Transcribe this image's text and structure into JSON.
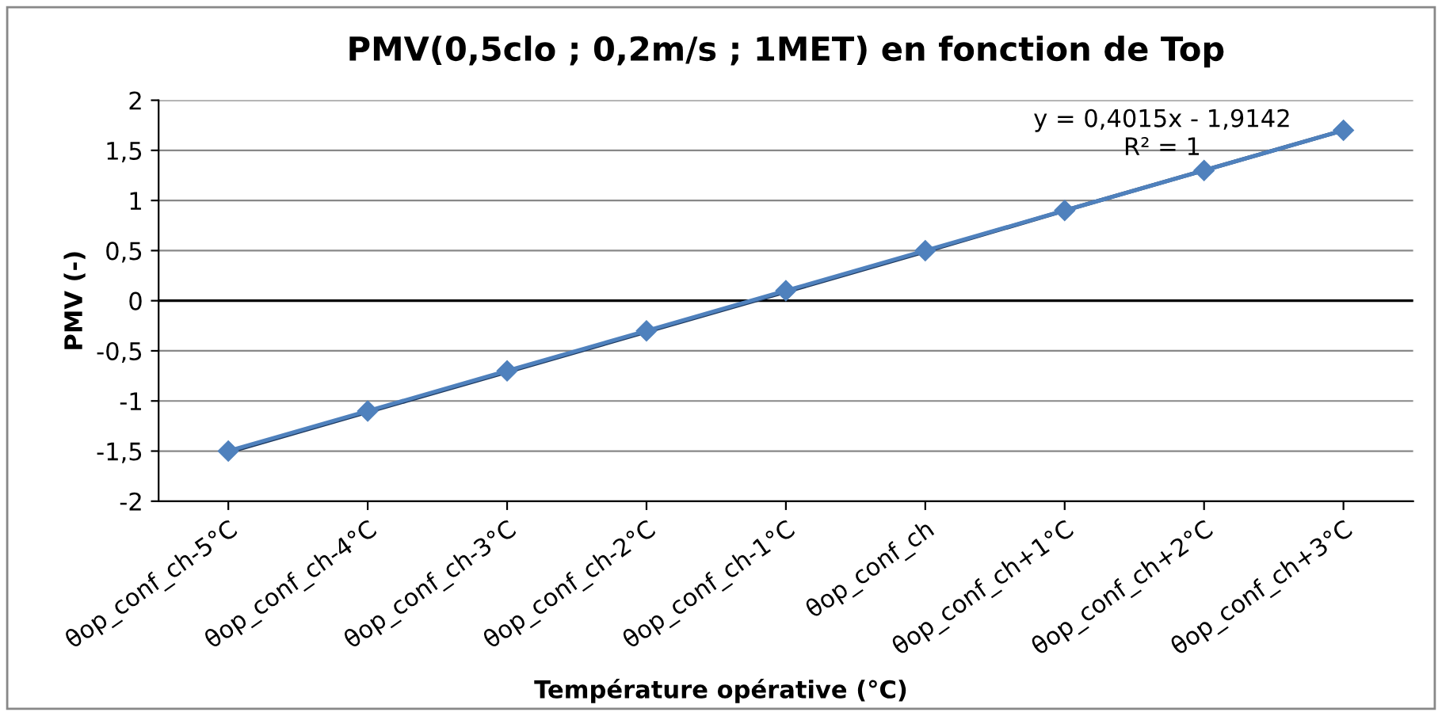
{
  "chart_data": {
    "type": "line",
    "title": "PMV(0,5clo ; 0,2m/s ; 1MET) en fonction de Top",
    "xlabel": "Température opérative (°C)",
    "ylabel": "PMV (-)",
    "categories": [
      "θop_conf_ch-5°C",
      "θop_conf_ch-4°C",
      "θop_conf_ch-3°C",
      "θop_conf_ch-2°C",
      "θop_conf_ch-1°C",
      "θop_conf_ch",
      "θop_conf_ch+1°C",
      "θop_conf_ch+2°C",
      "θop_conf_ch+3°C"
    ],
    "series": [
      {
        "color": "#4f81bd",
        "marker": "diamond",
        "line_style": "solid",
        "values": [
          -1.5,
          -1.1,
          -0.7,
          -0.3,
          0.1,
          0.5,
          0.9,
          1.3,
          1.7
        ]
      },
      {
        "color": "#1f3a5f",
        "marker": "none",
        "line_style": "solid",
        "values": [
          -1.51,
          -1.11,
          -0.71,
          -0.31,
          0.09,
          0.49,
          0.9,
          1.3,
          1.7
        ]
      }
    ],
    "ylim": [
      -2,
      2
    ],
    "yticks": [
      -2,
      {
        "value": -1.5,
        "label": "-1,5"
      },
      -1,
      {
        "value": -0.5,
        "label": "-0,5"
      },
      0,
      {
        "value": 0.5,
        "label": "0,5"
      },
      1,
      {
        "value": 1.5,
        "label": "1,5"
      },
      2
    ],
    "grid": "y",
    "legend": false,
    "annotations": [
      "y = 0,4015x - 1,9142",
      "R² = 1"
    ]
  }
}
